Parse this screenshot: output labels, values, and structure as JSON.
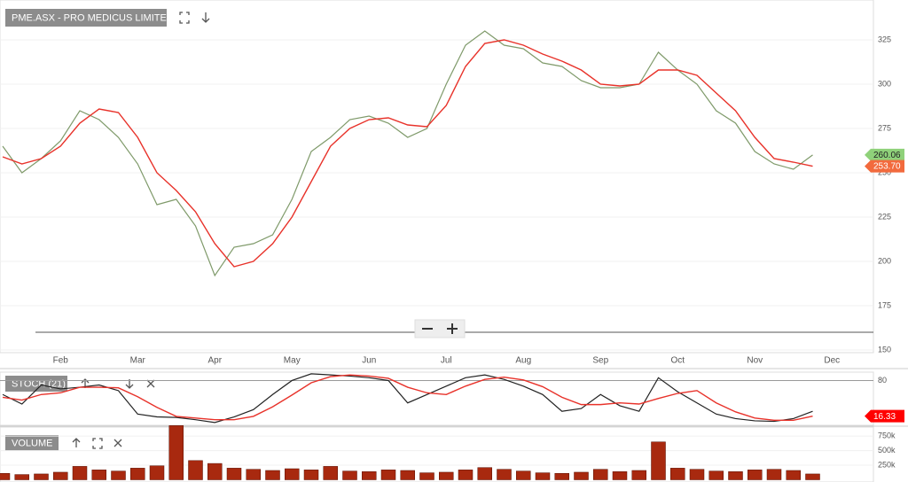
{
  "chart_data": [
    {
      "type": "line",
      "title": "PME.ASX - PRO MEDICUS LIMITED",
      "categories": [
        null,
        null,
        null,
        "Feb",
        null,
        null,
        null,
        "Mar",
        null,
        null,
        null,
        "Apr",
        null,
        null,
        null,
        "May",
        null,
        null,
        null,
        "Jun",
        null,
        null,
        null,
        "Jul",
        null,
        null,
        null,
        "Aug",
        null,
        null,
        null,
        "Sep",
        null,
        null,
        null,
        "Oct",
        null,
        null,
        null,
        "Nov",
        null,
        null,
        null,
        "Dec"
      ],
      "series": [
        {
          "color": "#7f9a6a",
          "values": [
            265,
            250,
            258,
            268,
            285,
            280,
            270,
            255,
            232,
            235,
            220,
            192,
            208,
            210,
            215,
            235,
            262,
            270,
            280,
            282,
            278,
            270,
            275,
            300,
            322,
            330,
            322,
            320,
            312,
            310,
            302,
            298,
            298,
            300,
            318,
            308,
            300,
            285,
            278,
            262,
            255,
            252,
            260.06,
            null
          ],
          "value_labels": [
            null,
            null,
            null,
            null,
            null,
            null,
            null,
            null,
            null,
            null,
            null,
            null,
            null,
            null,
            null,
            null,
            null,
            null,
            null,
            null,
            null,
            null,
            null,
            null,
            null,
            null,
            null,
            null,
            null,
            null,
            null,
            null,
            null,
            null,
            null,
            null,
            null,
            null,
            null,
            null,
            null,
            null,
            "260.06",
            null
          ],
          "label_color": "#8fd17a"
        },
        {
          "color": "#e8322a",
          "values": [
            259,
            255,
            258,
            265,
            278,
            286,
            284,
            270,
            250,
            240,
            228,
            210,
            197,
            200,
            210,
            225,
            245,
            265,
            275,
            280,
            281,
            277,
            276,
            288,
            310,
            323,
            325,
            322,
            317,
            313,
            308,
            300,
            299,
            300,
            308,
            308,
            305,
            295,
            285,
            270,
            258,
            256,
            253.7,
            null
          ],
          "value_labels": [
            null,
            null,
            null,
            null,
            null,
            null,
            null,
            null,
            null,
            null,
            null,
            null,
            null,
            null,
            null,
            null,
            null,
            null,
            null,
            null,
            null,
            null,
            null,
            null,
            null,
            null,
            null,
            null,
            null,
            null,
            null,
            null,
            null,
            null,
            null,
            null,
            null,
            null,
            null,
            null,
            null,
            null,
            "253.70",
            null
          ],
          "label_color": "#f26a3d"
        }
      ],
      "ylim": [
        148.5,
        347.5
      ],
      "yticks": [
        150,
        175,
        200,
        225,
        250,
        275,
        300,
        325
      ]
    },
    {
      "type": "line",
      "title": "STOCH (21)",
      "series": [
        {
          "color": "#222222",
          "values": [
            55,
            38,
            72,
            65,
            68,
            72,
            62,
            20,
            15,
            14,
            10,
            5,
            15,
            28,
            55,
            80,
            92,
            90,
            88,
            85,
            80,
            40,
            55,
            70,
            85,
            90,
            82,
            70,
            55,
            25,
            30,
            55,
            35,
            25,
            85,
            60,
            40,
            20,
            12,
            8,
            7,
            12,
            25,
            null
          ]
        },
        {
          "color": "#e8322a",
          "values": [
            50,
            45,
            55,
            58,
            68,
            68,
            67,
            51,
            32,
            16,
            13,
            10,
            10,
            16,
            33,
            54,
            76,
            87,
            90,
            88,
            84,
            68,
            58,
            55,
            70,
            82,
            86,
            81,
            69,
            50,
            37,
            37,
            40,
            38,
            48,
            57,
            62,
            40,
            24,
            13,
            9,
            9,
            16.33,
            null
          ],
          "value_labels": [
            null,
            null,
            null,
            null,
            null,
            null,
            null,
            null,
            null,
            null,
            null,
            null,
            null,
            null,
            null,
            null,
            null,
            null,
            null,
            null,
            null,
            null,
            null,
            null,
            null,
            null,
            null,
            null,
            null,
            null,
            null,
            null,
            null,
            null,
            null,
            null,
            null,
            null,
            null,
            null,
            null,
            null,
            "16.33",
            null
          ],
          "label_color": "#ff0000"
        }
      ],
      "ylim": [
        0,
        95
      ],
      "yticks": [
        80
      ]
    },
    {
      "type": "bar",
      "title": "VOLUME",
      "color": "#a8290f",
      "values": [
        110000,
        90000,
        100000,
        130000,
        230000,
        170000,
        150000,
        200000,
        240000,
        930000,
        330000,
        280000,
        200000,
        180000,
        160000,
        190000,
        170000,
        230000,
        150000,
        140000,
        170000,
        160000,
        120000,
        130000,
        170000,
        210000,
        180000,
        150000,
        120000,
        110000,
        130000,
        180000,
        140000,
        160000,
        650000,
        200000,
        180000,
        150000,
        140000,
        170000,
        180000,
        160000,
        100000,
        null
      ],
      "ylim": [
        0,
        950000
      ],
      "yticks": [
        {
          "value": 250000,
          "label": "250k"
        },
        {
          "value": 500000,
          "label": "500k"
        },
        {
          "value": 750000,
          "label": "750k"
        }
      ]
    }
  ]
}
